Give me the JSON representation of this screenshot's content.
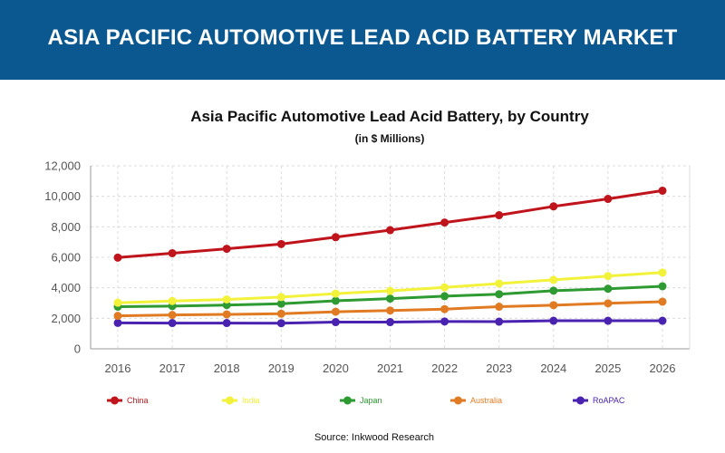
{
  "banner": {
    "title": "ASIA PACIFIC AUTOMOTIVE LEAD ACID BATTERY MARKET"
  },
  "source": "Source: Inkwood Research",
  "colors": {
    "banner": "#0b5890",
    "grid": "#dcdcdc",
    "axis": "#999999"
  },
  "chart_data": {
    "type": "line",
    "title": "Asia Pacific Automotive Lead Acid Battery, by Country",
    "subtitle": "(in $ Millions)",
    "xlabel": "",
    "ylabel": "",
    "x": [
      "2016",
      "2017",
      "2018",
      "2019",
      "2020",
      "2021",
      "2022",
      "2023",
      "2024",
      "2025",
      "2026"
    ],
    "ylim": [
      0,
      12000
    ],
    "yticks": [
      0,
      2000,
      4000,
      6000,
      8000,
      10000,
      12000
    ],
    "ytick_labels": [
      "0",
      "2,000",
      "4,000",
      "6,000",
      "8,000",
      "10,000",
      "12,000"
    ],
    "grid": true,
    "legend_position": "bottom",
    "series": [
      {
        "name": "China",
        "color": "#c0141c",
        "values": [
          5980,
          6270,
          6560,
          6870,
          7320,
          7780,
          8280,
          8760,
          9340,
          9830,
          10370
        ]
      },
      {
        "name": "India",
        "color": "#f2f23a",
        "values": [
          3020,
          3130,
          3240,
          3390,
          3620,
          3800,
          4030,
          4280,
          4520,
          4770,
          5000
        ]
      },
      {
        "name": "Japan",
        "color": "#2e9a32",
        "values": [
          2760,
          2800,
          2870,
          2960,
          3150,
          3290,
          3450,
          3580,
          3810,
          3940,
          4100
        ]
      },
      {
        "name": "Australia",
        "color": "#e07b23",
        "values": [
          2160,
          2220,
          2260,
          2300,
          2430,
          2510,
          2600,
          2760,
          2860,
          2980,
          3090
        ]
      },
      {
        "name": "RoAPAC",
        "color": "#4a22b0",
        "values": [
          1700,
          1690,
          1690,
          1680,
          1750,
          1750,
          1790,
          1780,
          1840,
          1840,
          1840
        ]
      }
    ]
  }
}
